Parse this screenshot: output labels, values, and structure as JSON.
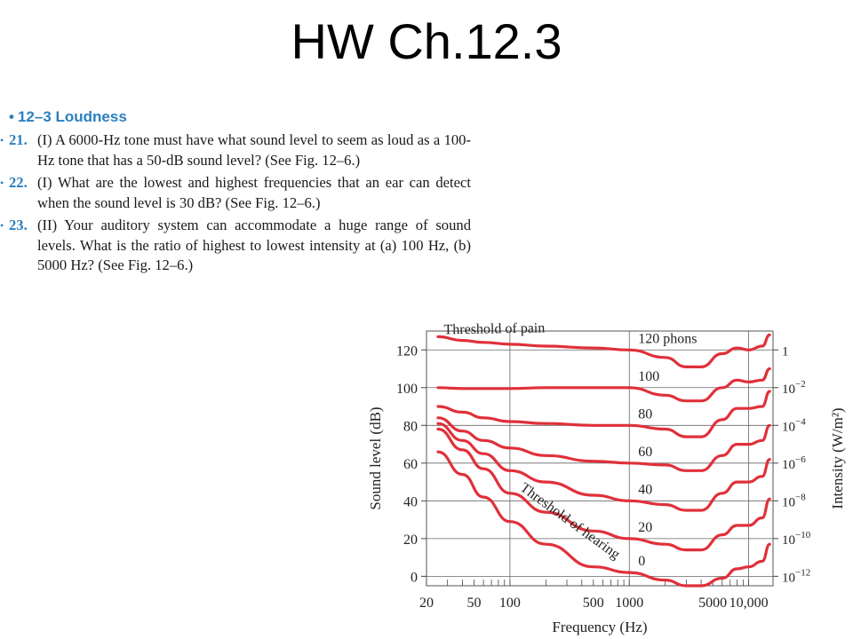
{
  "slide": {
    "title": "HW Ch.12.3"
  },
  "section": {
    "heading": "12–3 Loudness"
  },
  "problems": [
    {
      "number": "21.",
      "text": "(I) A 6000-Hz tone must have what sound level to seem as loud as a 100-Hz tone that has a 50-dB sound level? (See Fig. 12–6.)"
    },
    {
      "number": "22.",
      "text": "(I) What are the lowest and highest frequencies that an ear can detect when the sound level is 30 dB? (See Fig. 12–6.)"
    },
    {
      "number": "23.",
      "text": "(II) Your auditory system can accommodate a huge range of sound levels. What is the ratio of highest to lowest intensity at (a) 100 Hz, (b) 5000 Hz? (See Fig. 12–6.)"
    }
  ],
  "chart_data": {
    "type": "line",
    "xlabel": "Frequency (Hz)",
    "ylabel": "Sound level (dB)",
    "y2label": "Intensity (W/m²)",
    "xscale": "log",
    "xlim": [
      20,
      16000
    ],
    "ylim": [
      -5,
      130
    ],
    "grid": true,
    "x_ticks": [
      "20",
      "50",
      "100",
      "500",
      "1000",
      "5000",
      "10,000"
    ],
    "x_tick_values": [
      20,
      50,
      100,
      500,
      1000,
      5000,
      10000
    ],
    "y_ticks": [
      0,
      20,
      40,
      60,
      80,
      100,
      120
    ],
    "y2_ticks": [
      {
        "base": "1",
        "exp": ""
      },
      {
        "base": "10",
        "exp": "−2"
      },
      {
        "base": "10",
        "exp": "−4"
      },
      {
        "base": "10",
        "exp": "−6"
      },
      {
        "base": "10",
        "exp": "−8"
      },
      {
        "base": "10",
        "exp": "−10"
      },
      {
        "base": "10",
        "exp": "−12"
      }
    ],
    "annotations": {
      "pain": "Threshold of pain",
      "hearing": "Threshold of hearing"
    },
    "curve_color": "#e0303a",
    "x": [
      25,
      40,
      60,
      100,
      200,
      500,
      1000,
      2000,
      3000,
      4000,
      6000,
      8000,
      10000,
      13000,
      15000
    ],
    "series": [
      {
        "name": "120 phons",
        "label": "120 phons",
        "values": [
          127,
          125,
          124,
          123,
          122,
          121,
          120,
          116,
          111,
          111,
          118,
          121,
          120,
          122,
          128
        ]
      },
      {
        "name": "100",
        "label": "100",
        "values": [
          100,
          99.5,
          99.5,
          99.5,
          100,
          100,
          100,
          96,
          93,
          93,
          100,
          104,
          103,
          104,
          110
        ]
      },
      {
        "name": "80",
        "label": "80",
        "values": [
          90,
          87,
          84,
          82,
          81,
          80,
          80,
          78,
          74,
          74,
          83,
          89,
          89,
          90,
          98
        ]
      },
      {
        "name": "60",
        "label": "60",
        "values": [
          84,
          77,
          72,
          68,
          64,
          61,
          60,
          59,
          56,
          56,
          64,
          70,
          70,
          72,
          80
        ]
      },
      {
        "name": "40",
        "label": "40",
        "values": [
          81,
          72,
          65,
          56,
          50,
          43,
          40,
          38,
          35,
          35,
          44,
          50,
          50,
          53,
          62
        ]
      },
      {
        "name": "20",
        "label": "20",
        "values": [
          78,
          67,
          57,
          44,
          34,
          24,
          20,
          17,
          14,
          14,
          22,
          27,
          27,
          31,
          41
        ]
      },
      {
        "name": "0",
        "label": "0",
        "values": [
          66,
          54,
          42,
          29,
          17,
          5,
          2,
          -2,
          -5,
          -5,
          -1,
          4,
          5,
          8,
          17
        ]
      }
    ]
  }
}
